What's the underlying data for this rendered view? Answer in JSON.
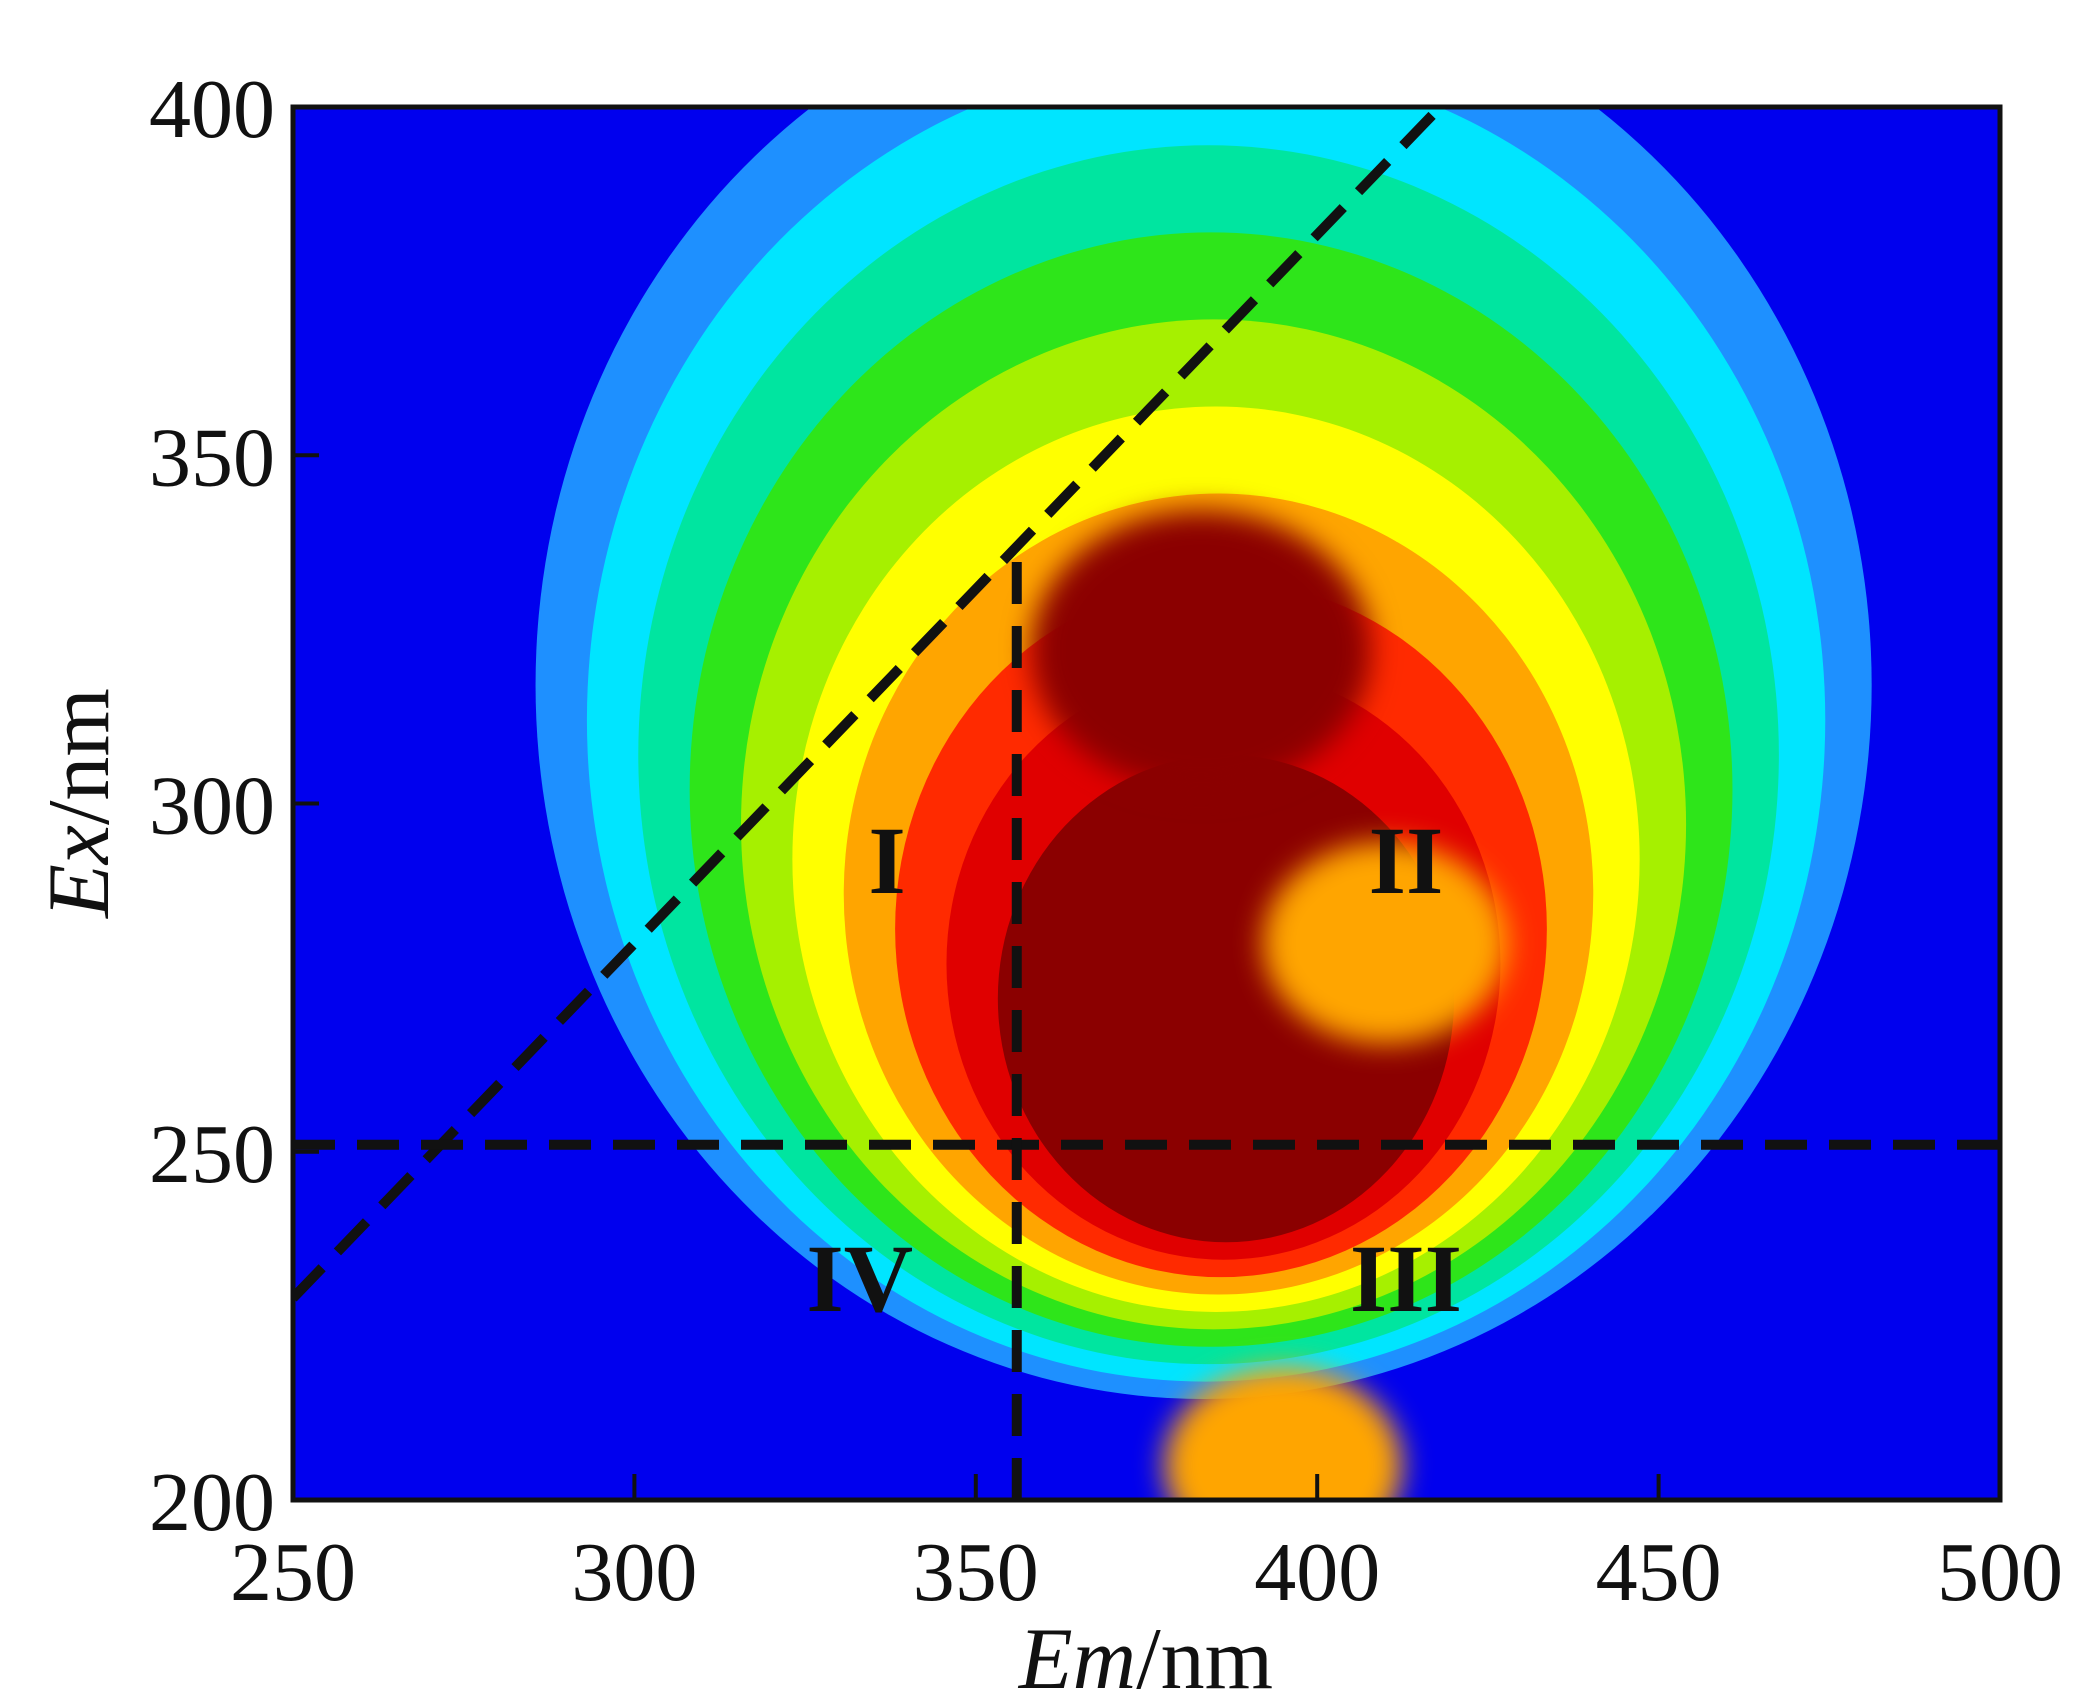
{
  "chart_data": {
    "type": "heatmap",
    "xlabel": {
      "italic": "Em",
      "rest": "/nm"
    },
    "ylabel": {
      "italic": "Ex",
      "rest": "/nm"
    },
    "xlim": [
      250,
      500
    ],
    "ylim": [
      200,
      400
    ],
    "x_ticks": [
      250,
      300,
      350,
      400,
      450,
      500
    ],
    "y_ticks": [
      200,
      250,
      300,
      350,
      400
    ],
    "x_tick_labels": [
      "250",
      "300",
      "350",
      "400",
      "450",
      "500"
    ],
    "y_tick_labels": [
      "200",
      "250",
      "300",
      "350",
      "400"
    ],
    "colormap": [
      "#0000ee",
      "#1e90ff",
      "#00e5ff",
      "#00e5a0",
      "#2ee51a",
      "#a6f000",
      "#ffff00",
      "#ffa500",
      "#ff2a00",
      "#e00000",
      "#8b0000"
    ],
    "intensity_peaks": [
      {
        "em": 383,
        "ex": 322,
        "level": 1.0
      },
      {
        "em": 410,
        "ex": 280,
        "level": 0.72
      },
      {
        "em": 395,
        "ex": 205,
        "level": 0.7
      }
    ],
    "divider_lines": [
      {
        "style": "dashed",
        "from": [
          250,
          229
        ],
        "to": [
          418,
          400
        ]
      },
      {
        "style": "dashed",
        "from": [
          250,
          251
        ],
        "to": [
          500,
          251
        ]
      },
      {
        "style": "dashed",
        "from": [
          356,
          200
        ],
        "to": [
          356,
          335
        ]
      }
    ],
    "regions": [
      {
        "label": "I",
        "em": 337,
        "ex": 292
      },
      {
        "label": "II",
        "em": 413,
        "ex": 292
      },
      {
        "label": "III",
        "em": 413,
        "ex": 232
      },
      {
        "label": "IV",
        "em": 333,
        "ex": 232
      }
    ],
    "grid": false
  }
}
